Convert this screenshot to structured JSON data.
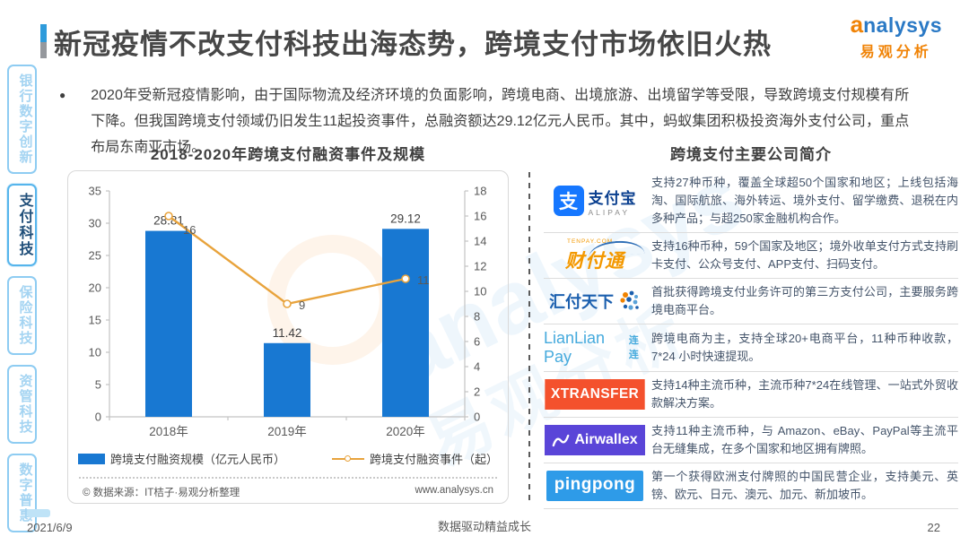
{
  "header": {
    "title": "新冠疫情不改支付科技出海态势，跨境支付市场依旧火热",
    "brand_initial": "a",
    "brand_rest": "nalysys",
    "brand_cn": "易观分析"
  },
  "sidebar": {
    "items": [
      {
        "label": "银行数字创新",
        "active": false
      },
      {
        "label": "支付科技",
        "active": true
      },
      {
        "label": "保险科技",
        "active": false
      },
      {
        "label": "资管科技",
        "active": false
      },
      {
        "label": "数字普惠",
        "active": false
      }
    ]
  },
  "summary": {
    "bullet": "●",
    "text": "2020年受新冠疫情影响，由于国际物流及经济环境的负面影响，跨境电商、出境旅游、出境留学等受限，导致跨境支付规模有所下降。但我国跨境支付领域仍旧发生11起投资事件，总融资额达29.12亿元人民币。其中，蚂蚁集团积极投资海外支付公司，重点布局东南亚市场。"
  },
  "chart_data": {
    "type": "bar+line combo",
    "title": "2018-2020年跨境支付融资事件及规模",
    "categories": [
      "2018年",
      "2019年",
      "2020年"
    ],
    "series": [
      {
        "name": "跨境支付融资规模（亿元人民币）",
        "type": "bar",
        "axis": "left",
        "color": "#1878D2",
        "values": [
          28.81,
          11.42,
          29.12
        ],
        "labels": [
          "28.81",
          "11.42",
          "29.12"
        ]
      },
      {
        "name": "跨境支付融资事件（起）",
        "type": "line",
        "axis": "right",
        "color": "#E8A33C",
        "values": [
          16,
          9,
          11
        ],
        "labels": [
          "16",
          "9",
          "11"
        ]
      }
    ],
    "left_axis": {
      "min": 0,
      "max": 35,
      "ticks": [
        0,
        5,
        10,
        15,
        20,
        25,
        30,
        35
      ]
    },
    "right_axis": {
      "min": 0,
      "max": 18,
      "ticks": [
        0,
        2,
        4,
        6,
        8,
        10,
        12,
        14,
        16,
        18
      ]
    },
    "grid": false,
    "legend_position": "bottom",
    "source_left": "© 数据来源：IT桔子·易观分析整理",
    "source_right": "www.analysys.cn"
  },
  "companies": {
    "title": "跨境支付主要公司简介",
    "rows": [
      {
        "name": "支付宝",
        "logo": {
          "glyph": "支",
          "main": "支付宝",
          "sub": "ALIPAY"
        },
        "desc": "支持27种币种，覆盖全球超50个国家和地区；上线包括海淘、国际航旅、海外转运、境外支付、留学缴费、退税在内多种产品；与超250家金融机构合作。"
      },
      {
        "name": "财付通",
        "logo": {
          "main": "财付通",
          "sub": "TENPAY.COM"
        },
        "desc": "支持16种币种，59个国家及地区；境外收单支付方式支持刷卡支付、公众号支付、APP支付、扫码支付。"
      },
      {
        "name": "汇付天下",
        "logo": {
          "main": "汇付天下"
        },
        "desc": "首批获得跨境支付业务许可的第三方支付公司，主要服务跨境电商平台。"
      },
      {
        "name": "LianLian Pay",
        "logo": {
          "main": "LianLian Pay",
          "sub": "连连"
        },
        "desc": "跨境电商为主，支持全球20+电商平台，11种币种收款，7*24 小时快速提现。"
      },
      {
        "name": "XTRANSFER",
        "logo": {
          "main": "XTRANSFER"
        },
        "desc": "支持14种主流币种，主流币种7*24在线管理、一站式外贸收款解决方案。"
      },
      {
        "name": "Airwallex",
        "logo": {
          "main": "Airwallex"
        },
        "desc": "支持11种主流币种，与 Amazon、eBay、PayPal等主流平台无缝集成，在多个国家和地区拥有牌照。"
      },
      {
        "name": "PingPong",
        "logo": {
          "main": "pingpong"
        },
        "desc": "第一个获得欧洲支付牌照的中国民营企业，支持美元、英镑、欧元、日元、澳元、加元、新加坡币。"
      }
    ]
  },
  "watermark": {
    "text1": "analysys",
    "text2": "易观分析"
  },
  "footer": {
    "date": "2021/6/9",
    "center": "数据驱动精益成长",
    "page": "22"
  }
}
